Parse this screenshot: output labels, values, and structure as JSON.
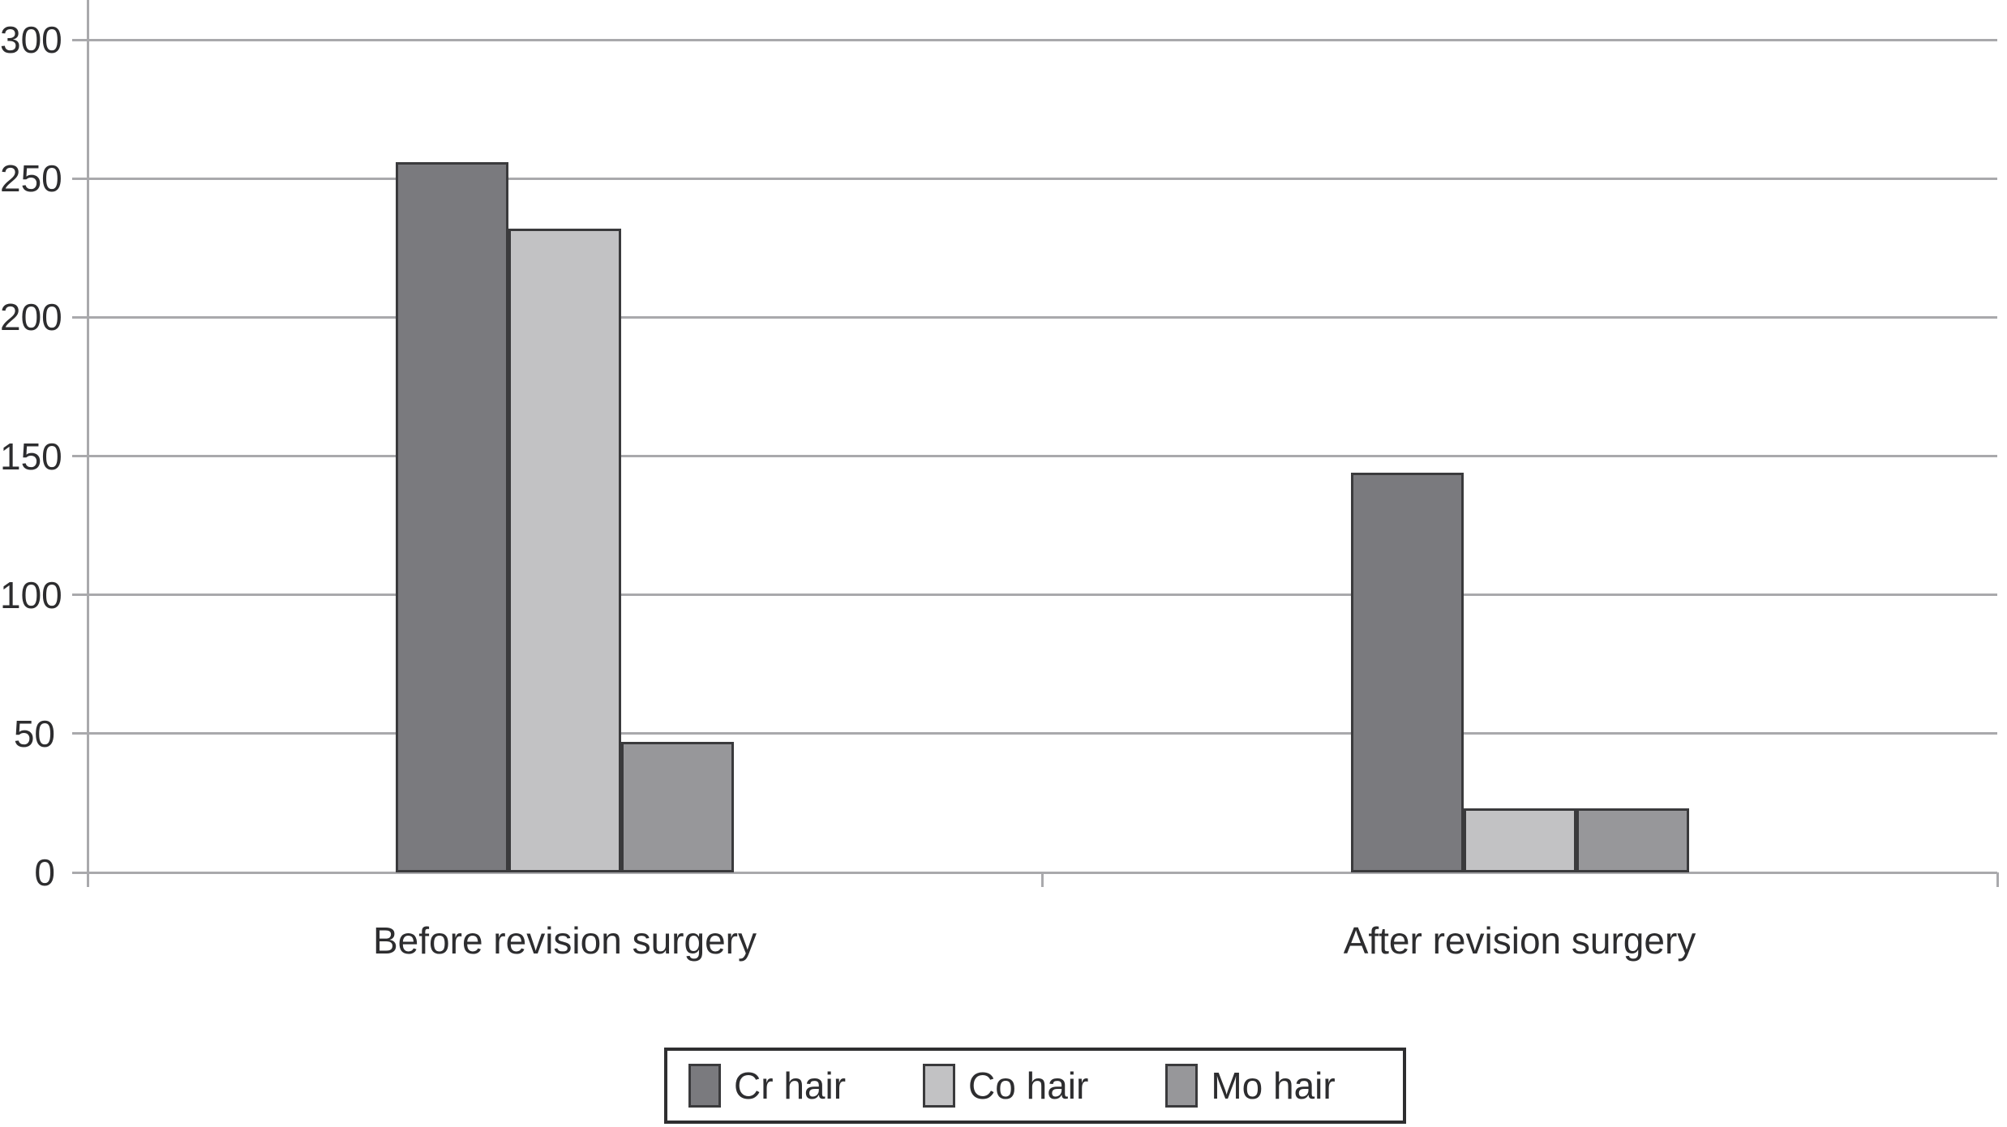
{
  "chart_data": {
    "type": "bar",
    "title": "",
    "xlabel": "",
    "ylabel": "",
    "categories": [
      "Before revision surgery",
      "After revision surgery"
    ],
    "series": [
      {
        "name": "Cr hair",
        "color": "#7a7a7e",
        "values": [
          256,
          144
        ]
      },
      {
        "name": "Co hair",
        "color": "#c2c2c4",
        "values": [
          232,
          23
        ]
      },
      {
        "name": "Mo hair",
        "color": "#97979a",
        "values": [
          47,
          23
        ]
      }
    ],
    "ylim": [
      0,
      300
    ],
    "yticks": [
      0,
      50,
      100,
      150,
      200,
      250,
      300
    ],
    "grid": true,
    "legend_position": "bottom",
    "colors": {
      "axis": "#a9a9ac",
      "bar_border": "#3a3a3c",
      "text": "#2d2d2f",
      "legend_border": "#2e2e30",
      "background": "#ffffff"
    }
  }
}
